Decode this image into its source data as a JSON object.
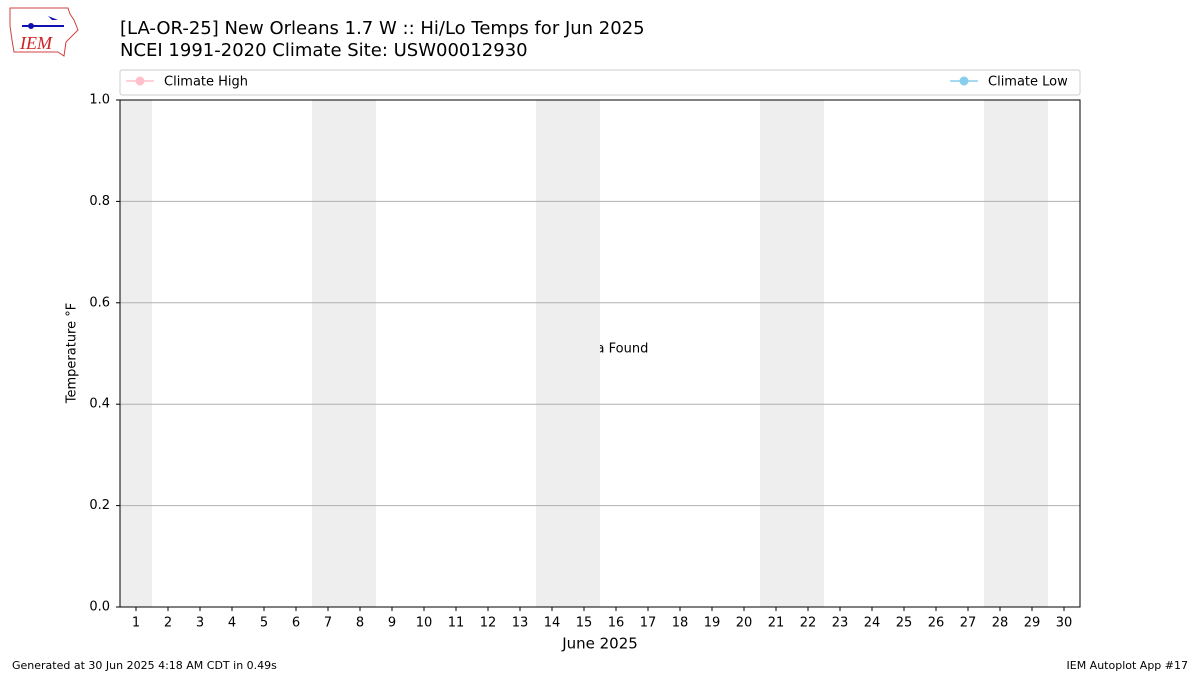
{
  "chart_data": {
    "type": "line",
    "title": "[LA-OR-25] New Orleans 1.7 W :: Hi/Lo Temps for Jun 2025",
    "subtitle": "NCEI 1991-2020 Climate Site: USW00012930",
    "xlabel": "June 2025",
    "ylabel": "Temperature °F",
    "annotation": "No Data Found",
    "categories": [
      1,
      2,
      3,
      4,
      5,
      6,
      7,
      8,
      9,
      10,
      11,
      12,
      13,
      14,
      15,
      16,
      17,
      18,
      19,
      20,
      21,
      22,
      23,
      24,
      25,
      26,
      27,
      28,
      29,
      30
    ],
    "series": [
      {
        "name": "Climate High",
        "color": "#ffc0cb",
        "values": [
          null,
          null,
          null,
          null,
          null,
          null,
          null,
          null,
          null,
          null,
          null,
          null,
          null,
          null,
          null,
          null,
          null,
          null,
          null,
          null,
          null,
          null,
          null,
          null,
          null,
          null,
          null,
          null,
          null,
          null
        ]
      },
      {
        "name": "Climate Low",
        "color": "#87ceeb",
        "values": [
          null,
          null,
          null,
          null,
          null,
          null,
          null,
          null,
          null,
          null,
          null,
          null,
          null,
          null,
          null,
          null,
          null,
          null,
          null,
          null,
          null,
          null,
          null,
          null,
          null,
          null,
          null,
          null,
          null,
          null
        ]
      }
    ],
    "ylim": [
      0,
      1
    ],
    "yticks": [
      {
        "value": 0,
        "label": "0.0"
      },
      {
        "value": 0.2,
        "label": "0.2"
      },
      {
        "value": 0.4,
        "label": "0.4"
      },
      {
        "value": 0.6,
        "label": "0.6"
      },
      {
        "value": 0.8,
        "label": "0.8"
      },
      {
        "value": 1,
        "label": "1.0"
      }
    ],
    "grid": true,
    "logo_text": "IEM",
    "footer_left": "Generated at 30 Jun 2025 4:18 AM CDT in 0.49s",
    "footer_right": "IEM Autoplot App #17"
  }
}
